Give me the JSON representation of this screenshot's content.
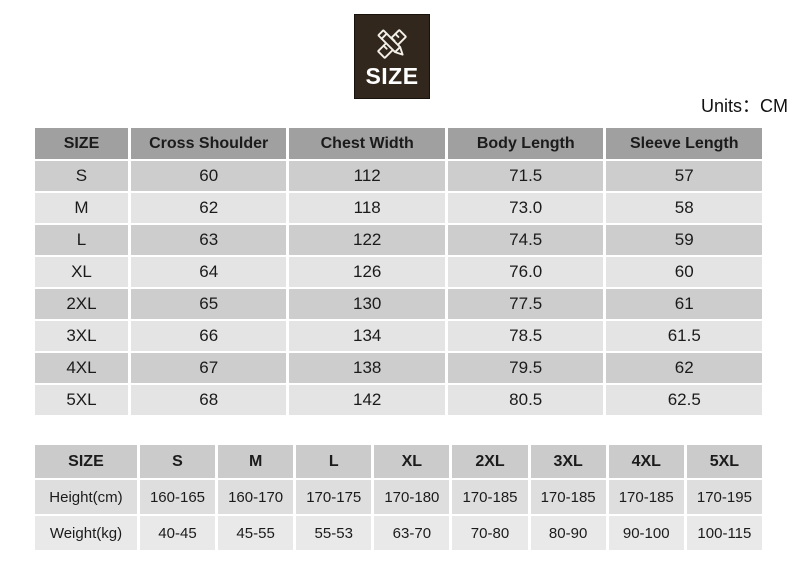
{
  "badge": {
    "label": "SIZE",
    "icon": "ruler-pencil-icon"
  },
  "units_text": "Units：CM",
  "size_table": {
    "headers": [
      "SIZE",
      "Cross Shoulder",
      "Chest Width",
      "Body Length",
      "Sleeve Length"
    ],
    "rows": [
      [
        "S",
        "60",
        "112",
        "71.5",
        "57"
      ],
      [
        "M",
        "62",
        "118",
        "73.0",
        "58"
      ],
      [
        "L",
        "63",
        "122",
        "74.5",
        "59"
      ],
      [
        "XL",
        "64",
        "126",
        "76.0",
        "60"
      ],
      [
        "2XL",
        "65",
        "130",
        "77.5",
        "61"
      ],
      [
        "3XL",
        "66",
        "134",
        "78.5",
        "61.5"
      ],
      [
        "4XL",
        "67",
        "138",
        "79.5",
        "62"
      ],
      [
        "5XL",
        "68",
        "142",
        "80.5",
        "62.5"
      ]
    ]
  },
  "fit_table": {
    "headers": [
      "SIZE",
      "S",
      "M",
      "L",
      "XL",
      "2XL",
      "3XL",
      "4XL",
      "5XL"
    ],
    "rows": [
      [
        "Height(cm)",
        "160-165",
        "160-170",
        "170-175",
        "170-180",
        "170-185",
        "170-185",
        "170-185",
        "170-195"
      ],
      [
        "Weight(kg)",
        "40-45",
        "45-55",
        "55-53",
        "63-70",
        "70-80",
        "80-90",
        "90-100",
        "100-115"
      ]
    ]
  },
  "colors": {
    "badge_bg": "#32271c",
    "badge_text": "#ffffff",
    "size_header_bg": "#a0a0a0",
    "size_row_dark_bg": "#cdcdcd",
    "size_row_light_bg": "#e4e4e4",
    "fit_header_bg": "#cbcbcb",
    "fit_row1_bg": "#dedede",
    "fit_row2_bg": "#e9e9e9",
    "text": "#1b1b1b",
    "background": "#ffffff"
  }
}
